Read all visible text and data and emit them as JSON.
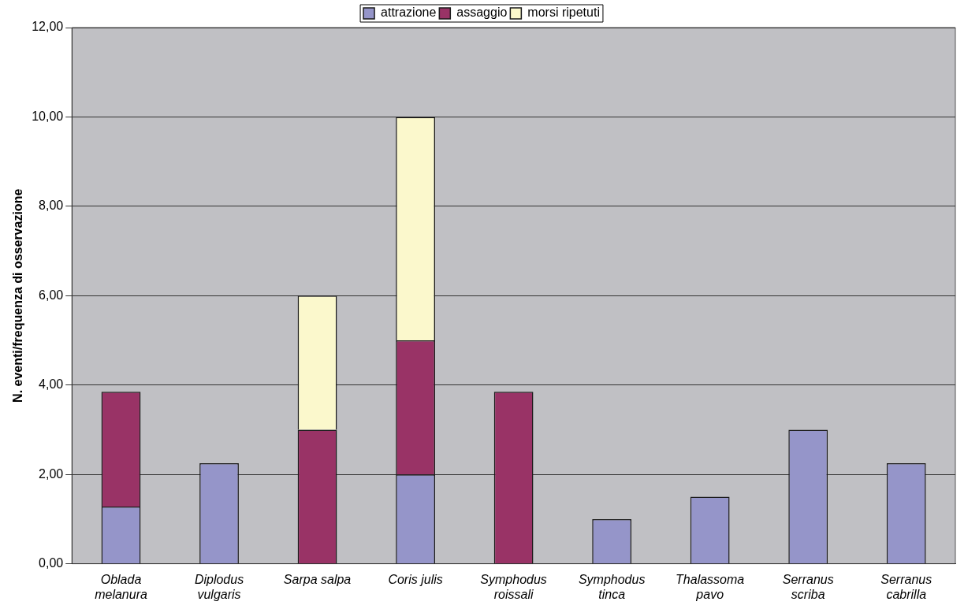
{
  "chart_data": {
    "type": "bar",
    "stacked": true,
    "ylabel": "N. eventi/frequenza di osservazione",
    "categories": [
      "Oblada melanura",
      "Diplodus vulgaris",
      "Sarpa salpa",
      "Coris julis",
      "Symphodus roissali",
      "Symphodus tinca",
      "Thalassoma pavo",
      "Serranus scriba",
      "Serranus cabrilla"
    ],
    "series": [
      {
        "name": "attrazione",
        "color": "#9595c9",
        "values": [
          1.28,
          2.25,
          0,
          2,
          0,
          1,
          1.5,
          3,
          2.25
        ]
      },
      {
        "name": "assaggio",
        "color": "#993366",
        "values": [
          2.57,
          0,
          3,
          3,
          3.85,
          0,
          0,
          0,
          0
        ]
      },
      {
        "name": "morsi ripetuti",
        "color": "#fbf8cc",
        "values": [
          0,
          0,
          3,
          5,
          0,
          0,
          0,
          0,
          0
        ]
      }
    ],
    "ylim": [
      0,
      12
    ],
    "yticks": [
      {
        "value": 0,
        "label": "0,00"
      },
      {
        "value": 2,
        "label": "2,00"
      },
      {
        "value": 4,
        "label": "4,00"
      },
      {
        "value": 6,
        "label": "6,00"
      },
      {
        "value": 8,
        "label": "8,00"
      },
      {
        "value": 10,
        "label": "10,00"
      },
      {
        "value": 12,
        "label": "12,00"
      }
    ],
    "grid": "y",
    "legend": "top"
  }
}
